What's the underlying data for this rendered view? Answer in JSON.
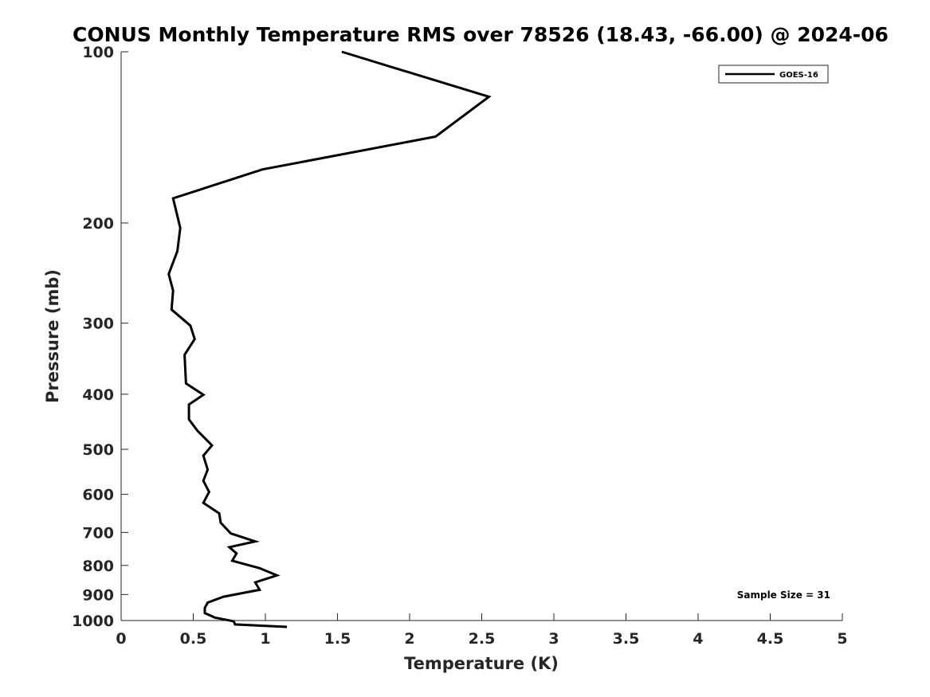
{
  "chart_data": {
    "type": "line",
    "title": "CONUS Monthly Temperature RMS over 78526 (18.43, -66.00) @ 2024-06",
    "xlabel": "Temperature (K)",
    "ylabel": "Pressure (mb)",
    "xlim": [
      0,
      5
    ],
    "ylim": [
      100,
      1000
    ],
    "y_scale": "log",
    "y_reversed": true,
    "grid": false,
    "legend_position": "top-right",
    "x_ticks": [
      "0",
      "0.5",
      "1",
      "1.5",
      "2",
      "2.5",
      "3",
      "3.5",
      "4",
      "4.5",
      "5"
    ],
    "y_ticks": [
      "100",
      "200",
      "300",
      "400",
      "500",
      "600",
      "700",
      "800",
      "900",
      "1000"
    ],
    "series": [
      {
        "name": "GOES-16",
        "color": "#000000",
        "x": [
          1.53,
          2.55,
          2.18,
          0.98,
          0.36,
          0.41,
          0.39,
          0.33,
          0.36,
          0.35,
          0.48,
          0.51,
          0.44,
          0.45,
          0.57,
          0.47,
          0.47,
          0.53,
          0.63,
          0.57,
          0.6,
          0.57,
          0.61,
          0.57,
          0.68,
          0.69,
          0.76,
          0.93,
          0.75,
          0.8,
          0.77,
          0.96,
          1.08,
          0.93,
          0.96,
          0.71,
          0.6,
          0.58,
          0.58,
          0.65,
          0.78,
          0.79,
          1.15
        ],
        "y": [
          100,
          120,
          141,
          161,
          181,
          204,
          224,
          246,
          263,
          284,
          303,
          320,
          341,
          383,
          401,
          417,
          443,
          464,
          492,
          513,
          543,
          568,
          594,
          621,
          648,
          673,
          703,
          726,
          743,
          762,
          785,
          809,
          833,
          857,
          883,
          908,
          930,
          950,
          970,
          988,
          1003,
          1016,
          1026
        ]
      }
    ],
    "annotation": "Sample Size = 31"
  }
}
